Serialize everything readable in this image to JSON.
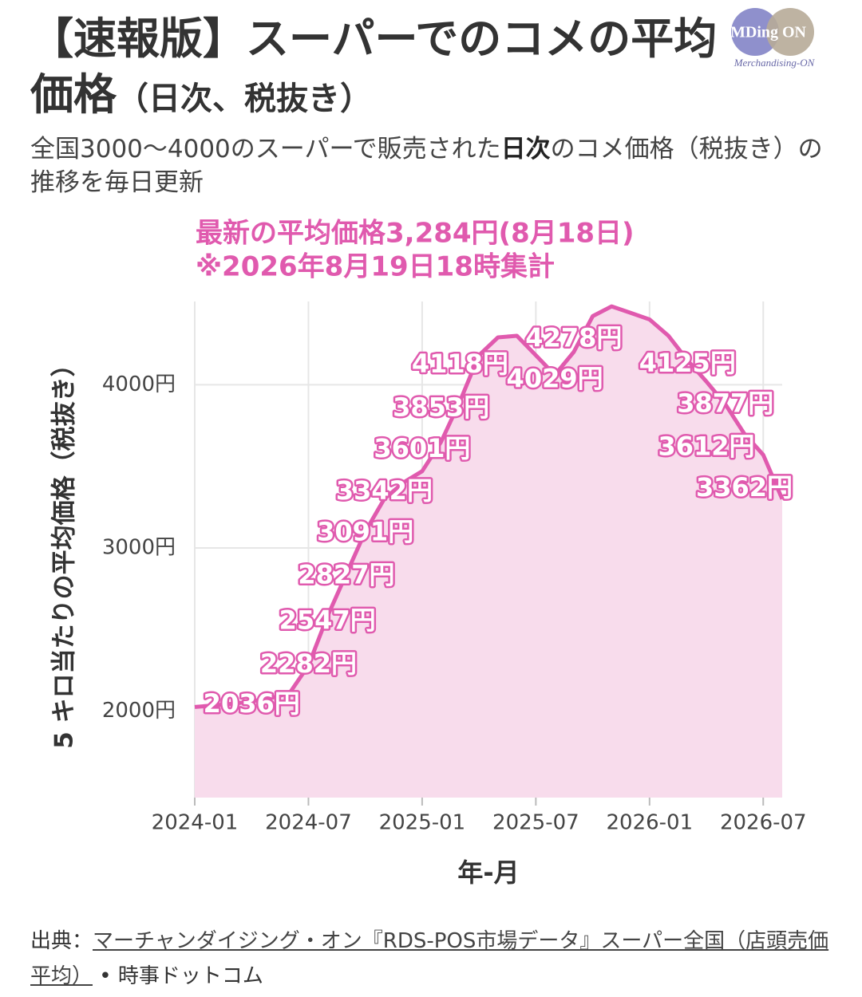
{
  "chart_data": {
    "type": "line",
    "title": "【速報版】スーパーでのコメの平均価格",
    "title_suffix": "（日次、税抜き）",
    "subtitle": [
      "全国3000〜4000のスーパーで販売された",
      "日次",
      "のコメ価格（税抜き）の推移を毎日更新"
    ],
    "annotation": [
      "最新の平均価格3,284円(8月18日)",
      "※2026年8月19日18時集計"
    ],
    "logo": [
      "MDing",
      "ON",
      "Merchandising-ON"
    ],
    "x_label": "年-月",
    "y_label": "5 キロ当たりの平均価格（税抜き）",
    "source": [
      "出典：",
      "マーチャンダイジング・オン『RDS-POS市場データ』スーパー全国（店頭売価平均）",
      "• 時事ドットコム"
    ],
    "x": [
      "2024-01",
      "2024-02",
      "2024-03",
      "2024-04",
      "2024-05",
      "2024-06",
      "2024-07",
      "2024-08",
      "2024-09",
      "2024-10",
      "2024-11",
      "2024-12",
      "2025-01",
      "2025-02",
      "2025-03",
      "2025-04",
      "2025-05",
      "2025-06",
      "2025-07",
      "2025-08",
      "2025-09",
      "2025-10",
      "2025-11",
      "2025-12",
      "2026-01",
      "2026-02",
      "2026-03",
      "2026-04",
      "2026-05",
      "2026-06",
      "2026-07",
      "2026-08"
    ],
    "series": [
      {
        "color": "#e05aae",
        "fill": "#f8dcec",
        "values": [
          2025,
          2035,
          2045,
          2060,
          2080,
          2110,
          2280,
          2580,
          2840,
          3100,
          3300,
          3400,
          3470,
          3650,
          3900,
          4180,
          4290,
          4300,
          4180,
          4060,
          4200,
          4420,
          4480,
          4440,
          4400,
          4300,
          4150,
          4020,
          3880,
          3700,
          3570,
          3300
        ]
      }
    ],
    "labels": [
      {
        "x": "2024-04",
        "value": 2036,
        "label": "2036円"
      },
      {
        "x": "2024-07",
        "value": 2282,
        "label": "2282円"
      },
      {
        "x": "2024-08",
        "value": 2547,
        "label": "2547円"
      },
      {
        "x": "2024-09",
        "value": 2827,
        "label": "2827円"
      },
      {
        "x": "2024-10",
        "value": 3091,
        "label": "3091円"
      },
      {
        "x": "2024-11",
        "value": 3342,
        "label": "3342円"
      },
      {
        "x": "2025-01",
        "value": 3601,
        "label": "3601円"
      },
      {
        "x": "2025-02",
        "value": 3853,
        "label": "3853円"
      },
      {
        "x": "2025-03",
        "value": 4118,
        "label": "4118円"
      },
      {
        "x": "2025-09",
        "value": 4278,
        "label": "4278円"
      },
      {
        "x": "2025-08",
        "value": 4029,
        "label": "4029円"
      },
      {
        "x": "2026-03",
        "value": 4125,
        "label": "4125円"
      },
      {
        "x": "2026-05",
        "value": 3877,
        "label": "3877円"
      },
      {
        "x": "2026-04",
        "value": 3612,
        "label": "3612円"
      },
      {
        "x": "2026-06",
        "value": 3362,
        "label": "3362円"
      }
    ],
    "xlim": [
      "2024-01",
      "2026-08"
    ],
    "xticks": [
      "2024-01",
      "2024-07",
      "2025-01",
      "2025-07",
      "2026-01",
      "2026-07"
    ],
    "ylim": [
      1470,
      4510
    ],
    "yticks": [
      {
        "value": 2000,
        "label": "2000円"
      },
      {
        "value": 3000,
        "label": "3000円"
      },
      {
        "value": 4000,
        "label": "4000円"
      }
    ],
    "grid": true
  }
}
